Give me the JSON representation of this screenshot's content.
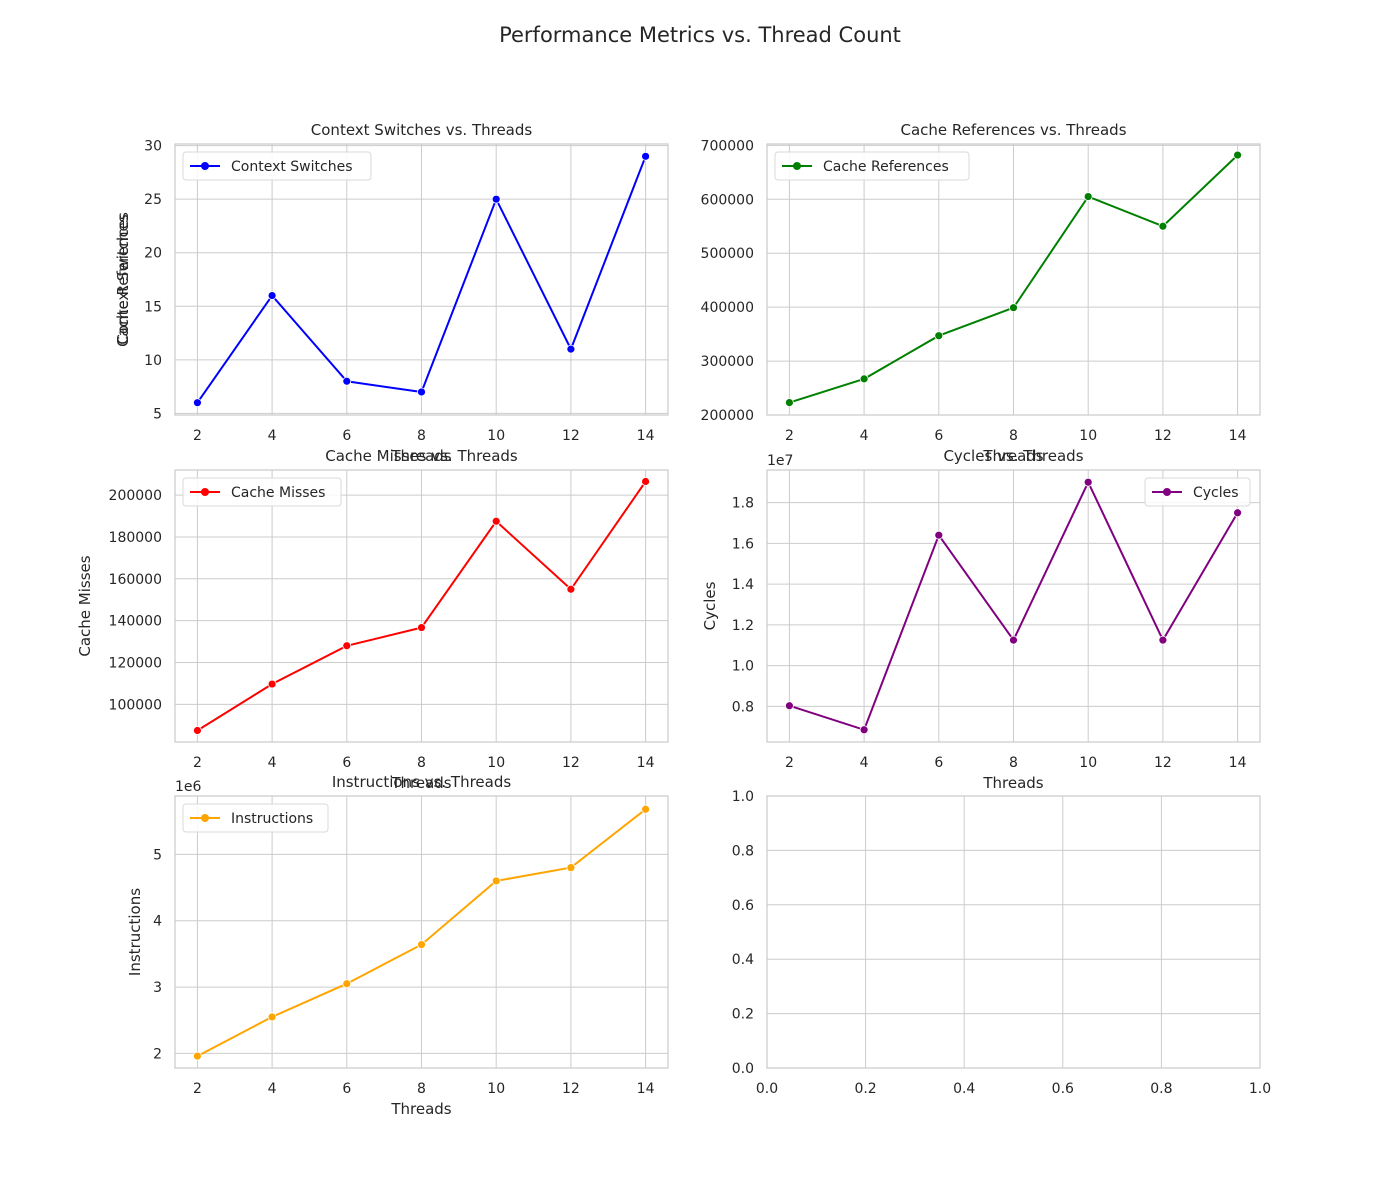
{
  "figure": {
    "title": "Performance Metrics vs. Thread Count"
  },
  "chart_data": [
    {
      "type": "line",
      "title": "Context Switches vs. Threads",
      "xlabel": "Threads",
      "ylabel": "Context Switches",
      "x": [
        2,
        4,
        6,
        8,
        10,
        12,
        14
      ],
      "xlim": [
        1.4,
        14.6
      ],
      "ylim": [
        4.85,
        30.15
      ],
      "xticks": [
        2,
        4,
        6,
        8,
        10,
        12,
        14
      ],
      "yticks": [
        5,
        10,
        15,
        20,
        25,
        30
      ],
      "ytick_labels": [
        "5",
        "10",
        "15",
        "20",
        "25",
        "30"
      ],
      "offset_label": "",
      "grid": true,
      "legend": "upper left",
      "series": [
        {
          "name": "Context Switches",
          "color": "#0000ff",
          "values": [
            6,
            16,
            8,
            7,
            25,
            11,
            29
          ]
        }
      ]
    },
    {
      "type": "line",
      "title": "Cache References vs. Threads",
      "xlabel": "Threads",
      "ylabel": "Cache References",
      "x": [
        2,
        4,
        6,
        8,
        10,
        12,
        14
      ],
      "xlim": [
        1.4,
        14.6
      ],
      "ylim": [
        200000,
        702500
      ],
      "xticks": [
        2,
        4,
        6,
        8,
        10,
        12,
        14
      ],
      "yticks": [
        200000,
        300000,
        400000,
        500000,
        600000,
        700000
      ],
      "ytick_labels": [
        "200000",
        "300000",
        "400000",
        "500000",
        "600000",
        "700000"
      ],
      "offset_label": "",
      "grid": true,
      "legend": "upper left",
      "series": [
        {
          "name": "Cache References",
          "color": "#008000",
          "values": [
            223000,
            267000,
            347000,
            399000,
            605000,
            550000,
            682000
          ]
        }
      ]
    },
    {
      "type": "line",
      "title": "Cache Misses vs. Threads",
      "xlabel": "Threads",
      "ylabel": "Cache Misses",
      "x": [
        2,
        4,
        6,
        8,
        10,
        12,
        14
      ],
      "xlim": [
        1.4,
        14.6
      ],
      "ylim": [
        82000,
        212000
      ],
      "xticks": [
        2,
        4,
        6,
        8,
        10,
        12,
        14
      ],
      "yticks": [
        100000,
        120000,
        140000,
        160000,
        180000,
        200000
      ],
      "ytick_labels": [
        "100000",
        "120000",
        "140000",
        "160000",
        "180000",
        "200000"
      ],
      "offset_label": "",
      "grid": true,
      "legend": "upper left",
      "series": [
        {
          "name": "Cache Misses",
          "color": "#ff0000",
          "values": [
            87500,
            109700,
            128000,
            136700,
            187500,
            155000,
            206500
          ]
        }
      ]
    },
    {
      "type": "line",
      "title": "Cycles vs. Threads",
      "xlabel": "Threads",
      "ylabel": "Cycles",
      "x": [
        2,
        4,
        6,
        8,
        10,
        12,
        14
      ],
      "xlim": [
        1.4,
        14.6
      ],
      "ylim": [
        6250000,
        19600000
      ],
      "xticks": [
        2,
        4,
        6,
        8,
        10,
        12,
        14
      ],
      "yticks": [
        8000000,
        10000000,
        12000000,
        14000000,
        16000000,
        18000000
      ],
      "ytick_labels": [
        "0.8",
        "1.0",
        "1.2",
        "1.4",
        "1.6",
        "1.8"
      ],
      "offset_label": "1e7",
      "grid": true,
      "legend": "upper right",
      "series": [
        {
          "name": "Cycles",
          "color": "#800080",
          "values": [
            8030000,
            6850000,
            16400000,
            11250000,
            19000000,
            11250000,
            17500000
          ]
        }
      ]
    },
    {
      "type": "line",
      "title": "Instructions vs. Threads",
      "xlabel": "Threads",
      "ylabel": "Instructions",
      "x": [
        2,
        4,
        6,
        8,
        10,
        12,
        14
      ],
      "xlim": [
        1.4,
        14.6
      ],
      "ylim": [
        1780000,
        5880000
      ],
      "xticks": [
        2,
        4,
        6,
        8,
        10,
        12,
        14
      ],
      "yticks": [
        2000000,
        3000000,
        4000000,
        5000000
      ],
      "ytick_labels": [
        "2",
        "3",
        "4",
        "5"
      ],
      "offset_label": "1e6",
      "grid": true,
      "legend": "upper left",
      "series": [
        {
          "name": "Instructions",
          "color": "#ffa500",
          "values": [
            1960000,
            2550000,
            3050000,
            3640000,
            4600000,
            4800000,
            5680000
          ]
        }
      ]
    },
    {
      "type": "line",
      "title": "",
      "xlabel": "",
      "ylabel": "",
      "x": [],
      "xlim": [
        0,
        1
      ],
      "ylim": [
        0,
        1
      ],
      "xticks": [
        0,
        0.2,
        0.4,
        0.6,
        0.8,
        1.0
      ],
      "xtick_labels": [
        "0.0",
        "0.2",
        "0.4",
        "0.6",
        "0.8",
        "1.0"
      ],
      "yticks": [
        0,
        0.2,
        0.4,
        0.6,
        0.8,
        1.0
      ],
      "ytick_labels": [
        "0.0",
        "0.2",
        "0.4",
        "0.6",
        "0.8",
        "1.0"
      ],
      "offset_label": "",
      "grid": true,
      "legend": "none",
      "series": []
    }
  ]
}
